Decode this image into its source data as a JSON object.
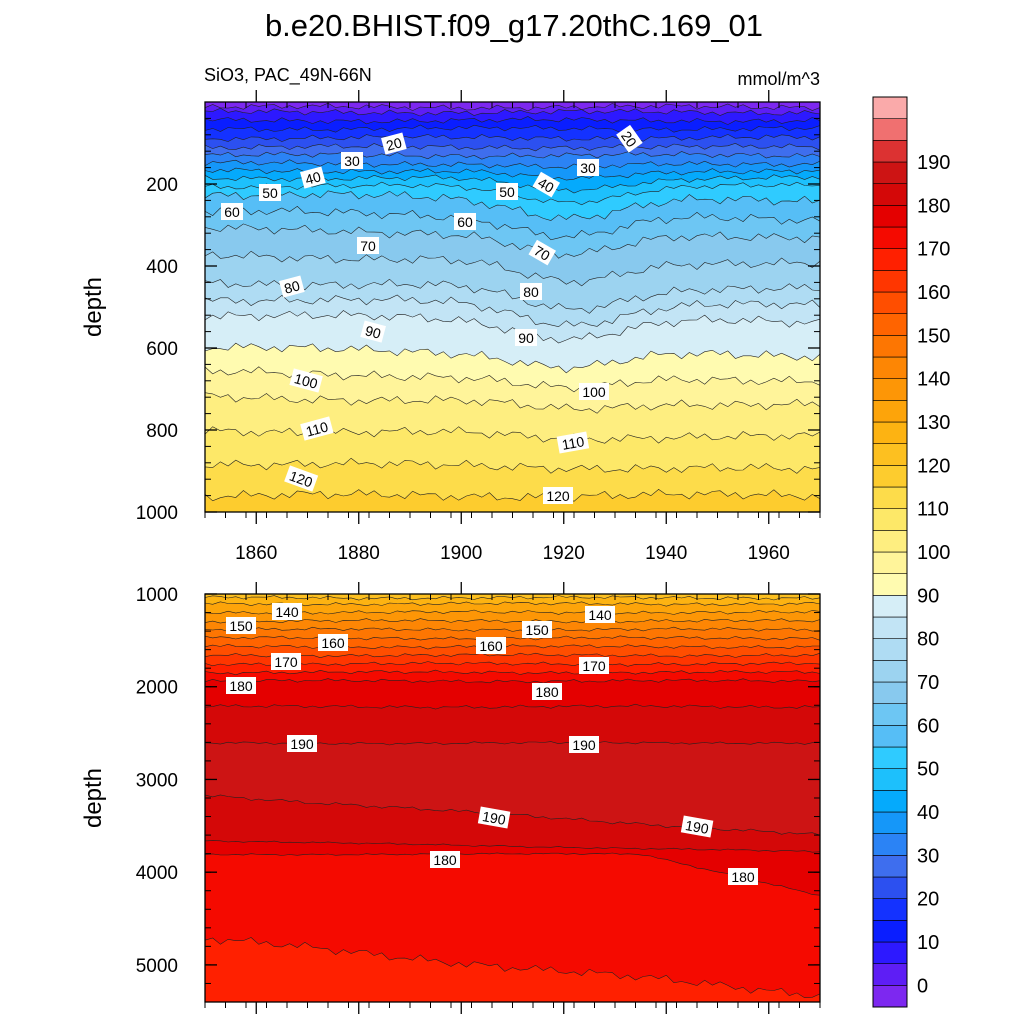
{
  "chart_data": {
    "type": "contour",
    "title": "b.e20.BHIST.f09_g17.20thC.169_01",
    "subtitle_left": "SiO3, PAC_49N-66N",
    "subtitle_right": "mmol/m^3",
    "xlabel": "",
    "x_range": [
      1850,
      1970
    ],
    "x_ticks": [
      "1860",
      "1880",
      "1900",
      "1920",
      "1940",
      "1960"
    ],
    "colorbar": {
      "levels": [
        0,
        10,
        20,
        30,
        40,
        50,
        60,
        70,
        80,
        90,
        100,
        110,
        120,
        130,
        140,
        150,
        160,
        170,
        180,
        190
      ],
      "labels": [
        "0",
        "10",
        "20",
        "30",
        "40",
        "50",
        "60",
        "70",
        "80",
        "90",
        "100",
        "110",
        "120",
        "130",
        "140",
        "150",
        "160",
        "170",
        "180",
        "190"
      ],
      "colors": [
        "#7D28F0",
        "#5E1EF5",
        "#2D19FF",
        "#0A1EFF",
        "#1432FF",
        "#2C50F0",
        "#3E6EEE",
        "#2B83F5",
        "#1597F9",
        "#05AAFC",
        "#1DC0FC",
        "#2FCBFF",
        "#56BEF6",
        "#6DC6F3",
        "#88C9EE",
        "#9CD3F0",
        "#AFDCF3",
        "#C2E4F5",
        "#D6EEF7",
        "#FFFBB0",
        "#FFF49A",
        "#FEEE80",
        "#FDE868",
        "#FDDC4A",
        "#FDCC2E",
        "#FDC020",
        "#FDB312",
        "#FDA40A",
        "#FD9606",
        "#FD8604",
        "#FD7602",
        "#FF6400",
        "#FF4E00",
        "#FF3600",
        "#FF2000",
        "#F50A00",
        "#E40000",
        "#D40808",
        "#CD1414",
        "#DC3232",
        "#F07070",
        "#FAAAAA"
      ]
    },
    "panels": [
      {
        "ylabel": "depth",
        "y_range": [
          0,
          1000
        ],
        "y_ticks": [
          "200",
          "400",
          "600",
          "800",
          "1000"
        ],
        "contour_labels": [
          "20",
          "20",
          "30",
          "30",
          "40",
          "40",
          "50",
          "50",
          "60",
          "60",
          "70",
          "70",
          "80",
          "80",
          "90",
          "90",
          "100",
          "100",
          "110",
          "110",
          "120",
          "120"
        ]
      },
      {
        "ylabel": "depth",
        "y_range": [
          1000,
          5400
        ],
        "y_ticks": [
          "1000",
          "2000",
          "3000",
          "4000",
          "5000"
        ],
        "contour_labels": [
          "140",
          "140",
          "150",
          "150",
          "160",
          "160",
          "170",
          "170",
          "180",
          "180",
          "190",
          "190",
          "190",
          "190",
          "180",
          "180"
        ]
      }
    ]
  }
}
